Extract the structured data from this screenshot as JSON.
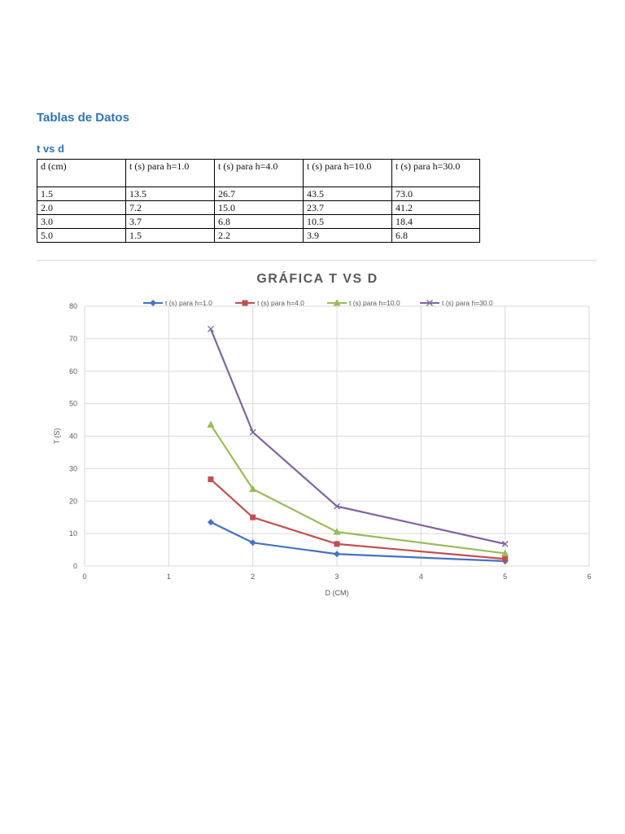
{
  "document": {
    "title": "Tablas de Datos",
    "subtitle": "t vs d"
  },
  "table": {
    "headers": [
      "d (cm)",
      "t (s) para h=1.0",
      "t (s) para h=4.0",
      "t (s) para h=10.0",
      "t (s) para h=30.0"
    ],
    "rows": [
      [
        "1.5",
        "13.5",
        "26.7",
        "43.5",
        "73.0"
      ],
      [
        "2.0",
        "7.2",
        "15.0",
        "23.7",
        "41.2"
      ],
      [
        "3.0",
        "3.7",
        "6.8",
        "10.5",
        "18.4"
      ],
      [
        "5.0",
        "1.5",
        "2.2",
        "3.9",
        "6.8"
      ]
    ]
  },
  "chart_data": {
    "type": "line",
    "title": "GRÁFICA T VS D",
    "xlabel": "D (CM)",
    "ylabel": "T (S)",
    "xlim": [
      0,
      6
    ],
    "ylim": [
      0,
      80
    ],
    "x_ticks": [
      0,
      1,
      2,
      3,
      4,
      5,
      6
    ],
    "y_ticks": [
      0,
      10,
      20,
      30,
      40,
      50,
      60,
      70,
      80
    ],
    "grid": true,
    "legend_position": "top",
    "x": [
      1.5,
      2.0,
      3.0,
      5.0
    ],
    "series": [
      {
        "name": "t (s) para h=1.0",
        "values": [
          13.5,
          7.2,
          3.7,
          1.5
        ],
        "color": "#4472c4",
        "marker": "diamond"
      },
      {
        "name": "t (s) para h=4.0",
        "values": [
          26.7,
          15.0,
          6.8,
          2.2
        ],
        "color": "#c0504d",
        "marker": "square"
      },
      {
        "name": "t (s) para h=10.0",
        "values": [
          43.5,
          23.7,
          10.5,
          3.9
        ],
        "color": "#9bbb59",
        "marker": "triangle"
      },
      {
        "name": "t (s) para h=30.0",
        "values": [
          73.0,
          41.2,
          18.4,
          6.8
        ],
        "color": "#8064a2",
        "marker": "x"
      }
    ]
  }
}
